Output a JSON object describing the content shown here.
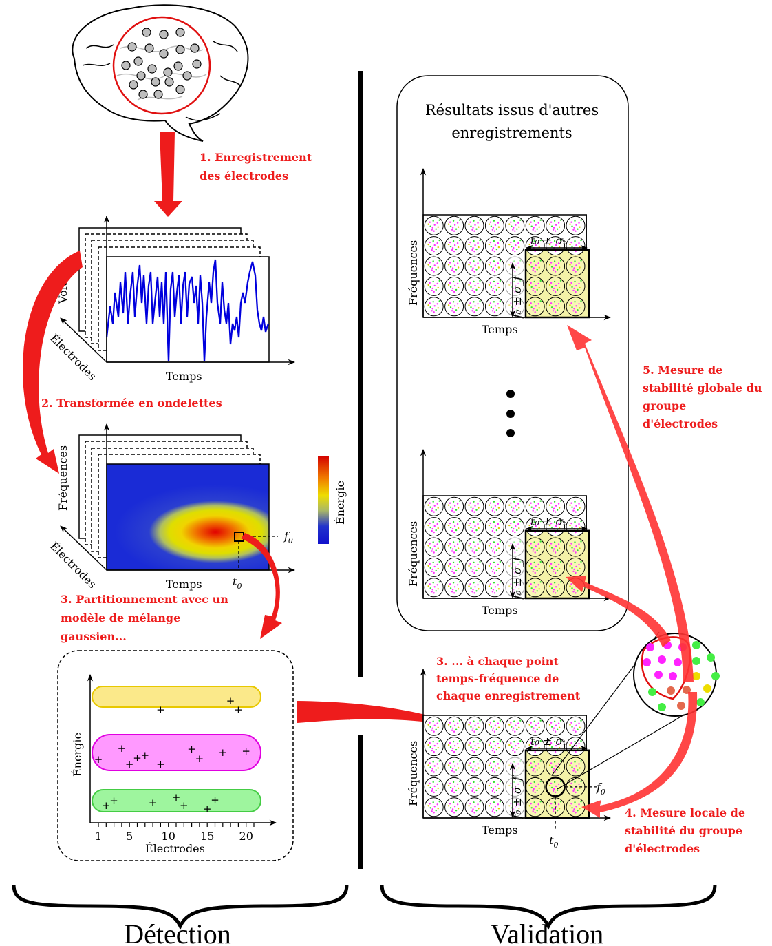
{
  "steps": {
    "s1": [
      "1. Enregistrement",
      "des électrodes"
    ],
    "s2": "2. Transformée en ondelettes",
    "s3a": [
      "3. Partitionnement avec un",
      "modèle de mélange",
      "gaussien..."
    ],
    "s3b": [
      "3. ... à chaque point",
      "temps-fréquence de",
      "chaque enregistrement"
    ],
    "s4": [
      "4. Mesure locale de",
      "stabilité du groupe",
      "d'électrodes"
    ],
    "s5": [
      "5. Mesure de",
      "stabilité globale du",
      "groupe",
      "d'électrodes"
    ]
  },
  "labels": {
    "voltage": "Voltage",
    "electrodes": "Électrodes",
    "temps": "Temps",
    "frequences": "Fréquences",
    "energie": "Énergie",
    "f0": "f",
    "t0": "t",
    "sub0": "0",
    "t_sigma": "t₀ ± σₜ",
    "f_sigma": "f₀ ± σ_f"
  },
  "validation_title": [
    "Résultats issus d'autres",
    "enregistrements"
  ],
  "sections": {
    "left": "Détection",
    "right": "Validation"
  },
  "colors": {
    "accent": "#ee1c1c",
    "signal": "#0000dd",
    "cluster_yellow": "#fbe98a",
    "cluster_magenta": "#ff99ff",
    "cluster_green": "#9ef59e",
    "highlight": "#f4f2a8"
  },
  "chart_data": {
    "type": "scatter",
    "xlabel": "Électrodes",
    "ylabel": "Énergie",
    "xticks": [
      1,
      5,
      10,
      15,
      20
    ],
    "xlim": [
      1,
      21
    ],
    "clusters": [
      {
        "color": "yellow",
        "points": [
          [
            9,
            2.5
          ],
          [
            18,
            2.8
          ],
          [
            19,
            2.4
          ]
        ]
      },
      {
        "color": "magenta",
        "points": [
          [
            1,
            1.5
          ],
          [
            4,
            1.9
          ],
          [
            5,
            1.4
          ],
          [
            6,
            1.6
          ],
          [
            7,
            1.65
          ],
          [
            9,
            1.85
          ],
          [
            13,
            1.9
          ],
          [
            14,
            1.6
          ],
          [
            17,
            1.8
          ],
          [
            20,
            1.85
          ]
        ]
      },
      {
        "color": "green",
        "points": [
          [
            2,
            0.45
          ],
          [
            3,
            0.6
          ],
          [
            8,
            0.55
          ],
          [
            11,
            0.7
          ],
          [
            12,
            0.45
          ],
          [
            15,
            0.5
          ],
          [
            16,
            0.65
          ]
        ]
      }
    ]
  }
}
